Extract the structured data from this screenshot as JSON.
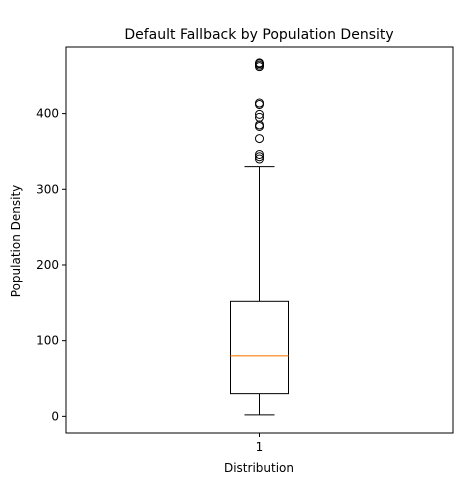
{
  "chart_data": {
    "type": "box",
    "title": "Default Fallback by Population Density",
    "xlabel": "Distribution",
    "ylabel": "Population Density",
    "categories": [
      "1"
    ],
    "ylim": [
      -22,
      488
    ],
    "yticks": [
      0,
      100,
      200,
      300,
      400
    ],
    "grid": false,
    "boxes": [
      {
        "name": "1",
        "whisker_low": 2,
        "q1": 30,
        "median": 80,
        "q3": 152,
        "whisker_high": 330,
        "outliers": [
          340,
          343,
          346,
          367,
          383,
          385,
          395,
          399,
          412,
          414,
          462,
          464,
          466,
          467
        ]
      }
    ],
    "colors": {
      "median": "#ff7f0e",
      "box": "#000000",
      "flier": "#000000"
    }
  }
}
